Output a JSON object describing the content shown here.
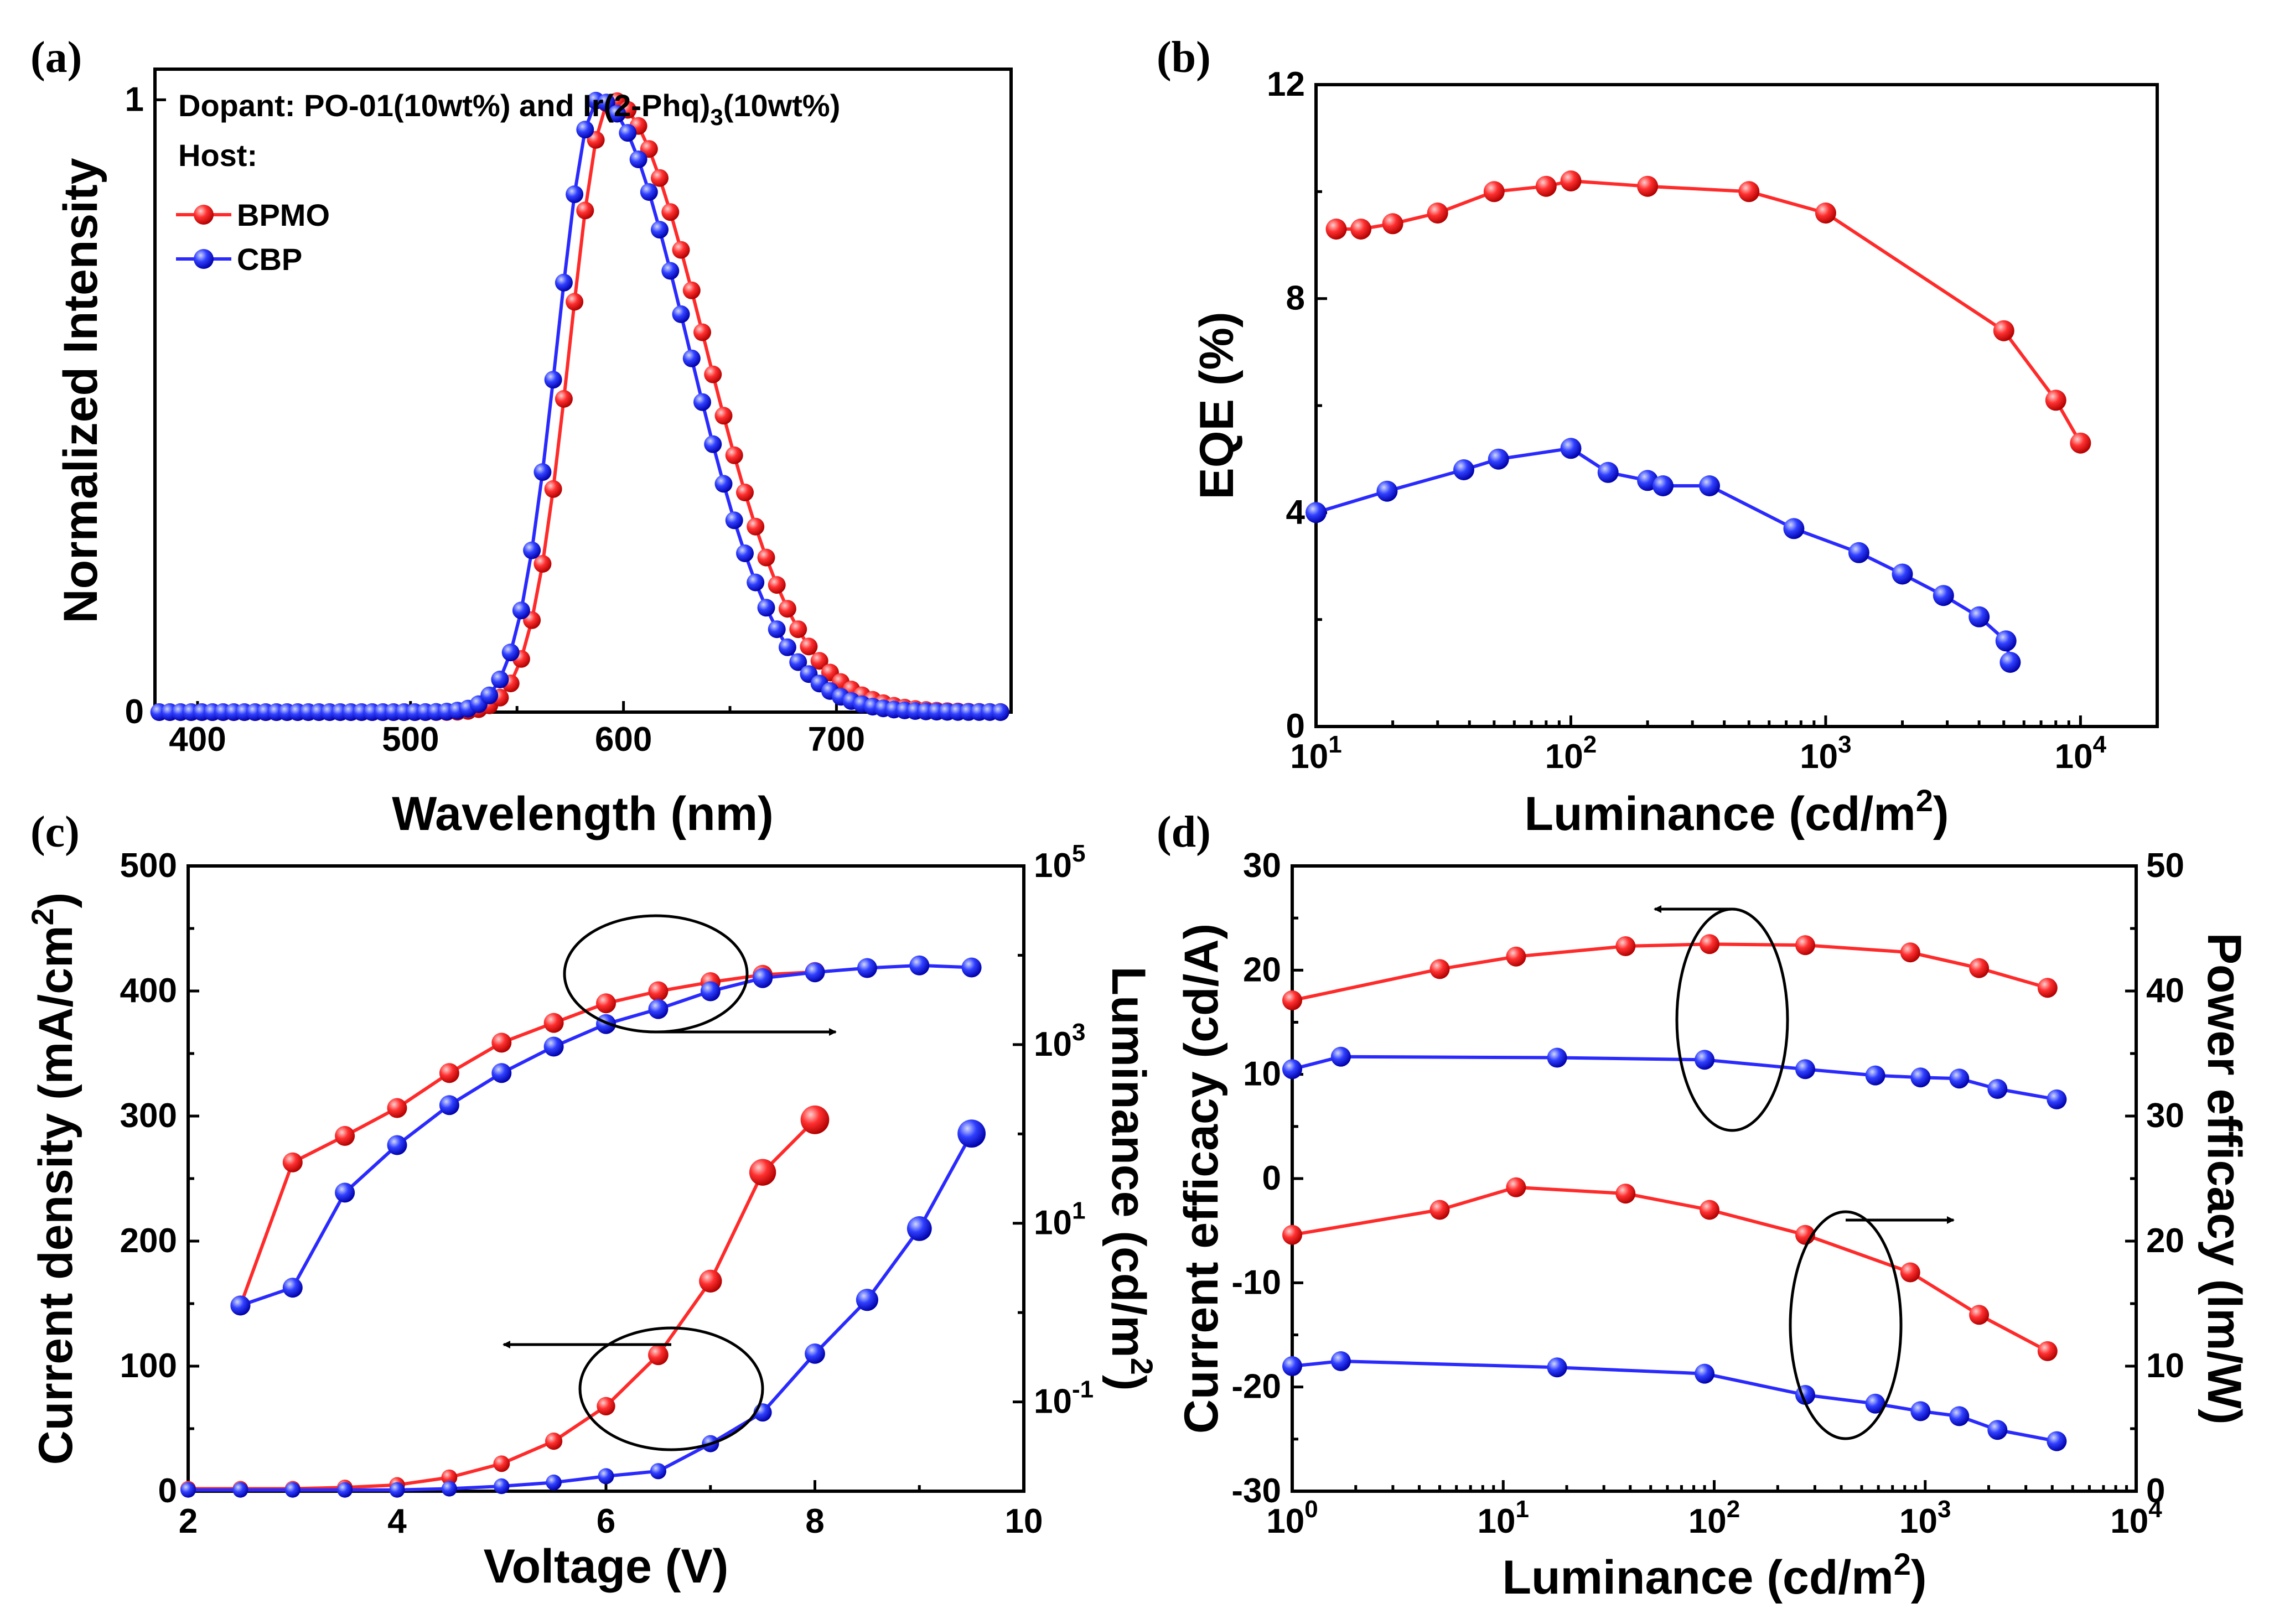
{
  "chart_data": [
    {
      "panel": "(a)",
      "type": "line",
      "xlabel": "Wavelength (nm)",
      "ylabel": "Normalized Intensity",
      "xlim": [
        380,
        782
      ],
      "ylim": [
        0,
        1.05
      ],
      "xticks": [
        "400",
        "500",
        "600",
        "700"
      ],
      "yticks": [
        "0",
        "1"
      ],
      "annotation_dopant_prefix": "Dopant: PO-01(10wt%) and Ir(2-Phq)",
      "annotation_dopant_sub": "3",
      "annotation_dopant_suffix": "(10wt%)",
      "annotation_host": "Host:",
      "legend": [
        "BPMO",
        "CBP"
      ],
      "series": [
        {
          "name": "BPMO",
          "color": "#ff2a2a",
          "peak": 594,
          "sigma_left": 19,
          "sigma_right": 44
        },
        {
          "name": "CBP",
          "color": "#2a2aff",
          "peak": 588,
          "sigma_left": 19,
          "sigma_right": 42
        }
      ]
    },
    {
      "panel": "(b)",
      "type": "line",
      "xscale": "log",
      "xlabel_main": "Luminance (cd/m",
      "xlabel_sup": "2",
      "xlabel_end": ")",
      "ylabel": "EQE (%)",
      "xlim": [
        10,
        20000
      ],
      "ylim": [
        0,
        12
      ],
      "xticks": [
        {
          "base": "10",
          "exp": "1"
        },
        {
          "base": "10",
          "exp": "2"
        },
        {
          "base": "10",
          "exp": "3"
        },
        {
          "base": "10",
          "exp": "4"
        }
      ],
      "yticks": [
        "0",
        "4",
        "8",
        "12"
      ],
      "series": [
        {
          "name": "BPMO",
          "color": "#ff2a2a",
          "x": [
            12,
            15,
            20,
            30,
            50,
            80,
            100,
            200,
            500,
            1000,
            5000,
            8000,
            10000
          ],
          "y": [
            9.3,
            9.3,
            9.4,
            9.6,
            10.0,
            10.1,
            10.2,
            10.1,
            10.0,
            9.6,
            7.4,
            6.1,
            5.3
          ]
        },
        {
          "name": "CBP",
          "color": "#2a2aff",
          "x": [
            10,
            19,
            38,
            52,
            100,
            140,
            200,
            230,
            350,
            750,
            1350,
            2000,
            2900,
            4000,
            5100,
            5300
          ],
          "y": [
            4.0,
            4.4,
            4.8,
            5.0,
            5.2,
            4.75,
            4.6,
            4.5,
            4.5,
            3.7,
            3.25,
            2.85,
            2.45,
            2.05,
            1.6,
            1.2
          ]
        }
      ]
    },
    {
      "panel": "(c)",
      "type": "line",
      "xlabel": "Voltage (V)",
      "ylabel_left_main": "Current density (mA/cm",
      "ylabel_left_sup": "2",
      "ylabel_left_end": ")",
      "ylabel_right_main": "Luminance (cd/m",
      "ylabel_right_sup": "2",
      "ylabel_right_end": ")",
      "xlim": [
        2,
        10
      ],
      "ylim_left": [
        0,
        500
      ],
      "ylim_right_log": [
        0.01,
        100000
      ],
      "xticks": [
        "2",
        "4",
        "6",
        "8",
        "10"
      ],
      "yticks_left": [
        "0",
        "100",
        "200",
        "300",
        "400",
        "500"
      ],
      "yticks_right": [
        {
          "base": "10",
          "exp": "-1"
        },
        {
          "base": "10",
          "exp": "1"
        },
        {
          "base": "10",
          "exp": "3"
        },
        {
          "base": "10",
          "exp": "5"
        }
      ],
      "series": [
        {
          "name": "BPMO current density",
          "axis": "left",
          "color": "#ff2a2a",
          "x": [
            2,
            2.5,
            3,
            3.5,
            4,
            4.5,
            5,
            5.5,
            6,
            6.5,
            7,
            7.5,
            8
          ],
          "y": [
            2,
            2,
            2,
            3,
            5,
            11,
            22,
            40,
            68,
            109,
            168,
            255,
            297
          ]
        },
        {
          "name": "CBP current density",
          "axis": "left",
          "color": "#2a2aff",
          "x": [
            2,
            2.5,
            3,
            3.5,
            4,
            4.5,
            5,
            5.5,
            6,
            6.5,
            7,
            7.5,
            8,
            8.5,
            9,
            9.5
          ],
          "y": [
            1,
            1,
            1,
            1,
            1,
            2,
            4,
            7,
            12,
            16,
            38,
            63,
            110,
            153,
            210,
            286
          ]
        },
        {
          "name": "BPMO luminance",
          "axis": "right",
          "color": "#ff2a2a",
          "x": [
            2.5,
            3,
            3.5,
            4,
            4.5,
            5,
            5.5,
            6,
            6.5,
            7,
            7.5,
            8
          ],
          "y": [
            1.2,
            48,
            95,
            195,
            480,
            1050,
            1750,
            2900,
            3950,
            5000,
            6050,
            6500
          ]
        },
        {
          "name": "CBP luminance",
          "axis": "right",
          "color": "#2a2aff",
          "x": [
            2.5,
            3,
            3.5,
            4,
            4.5,
            5,
            5.5,
            6,
            6.5,
            7,
            7.5,
            8,
            8.5,
            9,
            9.5
          ],
          "y": [
            1.2,
            1.9,
            22,
            75,
            210,
            480,
            950,
            1700,
            2500,
            3950,
            5550,
            6450,
            7200,
            7700,
            7300
          ]
        }
      ]
    },
    {
      "panel": "(d)",
      "type": "line",
      "xscale": "log",
      "xlabel_main": "Luminance (cd/m",
      "xlabel_sup": "2",
      "xlabel_end": ")",
      "ylabel_left": "Current efficacy (cd/A)",
      "ylabel_right": "Power efficacy (lm/W)",
      "xlim": [
        1,
        10000
      ],
      "ylim_left": [
        -30,
        30
      ],
      "ylim_right": [
        0,
        50
      ],
      "xticks": [
        {
          "base": "10",
          "exp": "0"
        },
        {
          "base": "10",
          "exp": "1"
        },
        {
          "base": "10",
          "exp": "2"
        },
        {
          "base": "10",
          "exp": "3"
        },
        {
          "base": "10",
          "exp": "4"
        }
      ],
      "yticks_left": [
        "-30",
        "-20",
        "-10",
        "0",
        "10",
        "20",
        "30"
      ],
      "yticks_right": [
        "0",
        "10",
        "20",
        "30",
        "40",
        "50"
      ],
      "series": [
        {
          "name": "BPMO current efficacy",
          "axis": "left",
          "color": "#ff2a2a",
          "x": [
            1,
            5,
            11.5,
            38,
            95,
            270,
            850,
            1800,
            3800
          ],
          "y": [
            17.1,
            20.1,
            21.3,
            22.3,
            22.5,
            22.4,
            21.7,
            20.2,
            18.3
          ]
        },
        {
          "name": "CBP current efficacy",
          "axis": "left",
          "color": "#2a2aff",
          "x": [
            1,
            1.7,
            18,
            90,
            270,
            580,
            950,
            1450,
            2200,
            4200
          ],
          "y": [
            10.5,
            11.7,
            11.6,
            11.4,
            10.5,
            9.9,
            9.7,
            9.6,
            8.6,
            7.6
          ]
        },
        {
          "name": "BPMO power efficacy",
          "axis": "right",
          "color": "#ff2a2a",
          "x": [
            1,
            5,
            11.5,
            38,
            95,
            270,
            850,
            1800,
            3800
          ],
          "y": [
            20.5,
            22.5,
            24.3,
            23.8,
            22.5,
            20.5,
            17.5,
            14.1,
            11.2
          ]
        },
        {
          "name": "CBP power efficacy",
          "axis": "right",
          "color": "#2a2aff",
          "x": [
            1,
            1.7,
            18,
            90,
            270,
            580,
            950,
            1450,
            2200,
            4200
          ],
          "y": [
            10.0,
            10.4,
            9.9,
            9.4,
            7.7,
            7.0,
            6.4,
            6.0,
            4.9,
            4.0
          ]
        }
      ]
    }
  ]
}
